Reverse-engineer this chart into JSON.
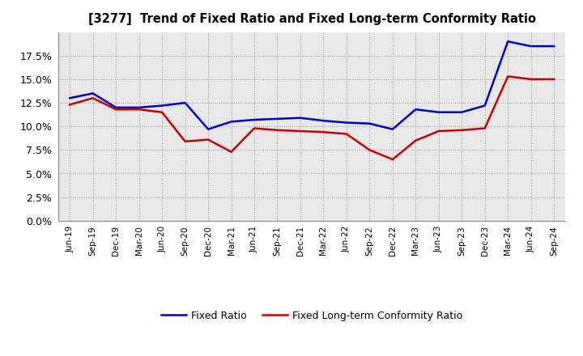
{
  "title": "[3277]  Trend of Fixed Ratio and Fixed Long-term Conformity Ratio",
  "x_labels": [
    "Jun-19",
    "Sep-19",
    "Dec-19",
    "Mar-20",
    "Jun-20",
    "Sep-20",
    "Dec-20",
    "Mar-21",
    "Jun-21",
    "Sep-21",
    "Dec-21",
    "Mar-22",
    "Jun-22",
    "Sep-22",
    "Dec-22",
    "Mar-23",
    "Jun-23",
    "Sep-23",
    "Dec-23",
    "Mar-24",
    "Jun-24",
    "Sep-24"
  ],
  "fixed_ratio": [
    13.0,
    13.5,
    12.0,
    12.0,
    12.2,
    12.5,
    9.7,
    10.5,
    10.7,
    10.8,
    10.9,
    10.6,
    10.4,
    10.3,
    9.7,
    11.8,
    11.5,
    11.5,
    12.2,
    19.0,
    18.5,
    18.5
  ],
  "fixed_lt_ratio": [
    12.3,
    13.0,
    11.8,
    11.8,
    11.5,
    8.4,
    8.6,
    7.3,
    9.8,
    9.6,
    9.5,
    9.4,
    9.2,
    7.5,
    6.5,
    8.5,
    9.5,
    9.6,
    9.8,
    15.3,
    15.0,
    15.0
  ],
  "fixed_ratio_color": "#0000cc",
  "fixed_lt_ratio_color": "#cc0000",
  "ylim_min": 0,
  "ylim_max": 20.0,
  "yticks": [
    0.0,
    2.5,
    5.0,
    7.5,
    10.0,
    12.5,
    15.0,
    17.5
  ],
  "grid_color": "#999999",
  "plot_bg_color": "#e8e8e8",
  "fig_bg_color": "#ffffff",
  "legend_fixed": "Fixed Ratio",
  "legend_lt": "Fixed Long-term Conformity Ratio"
}
